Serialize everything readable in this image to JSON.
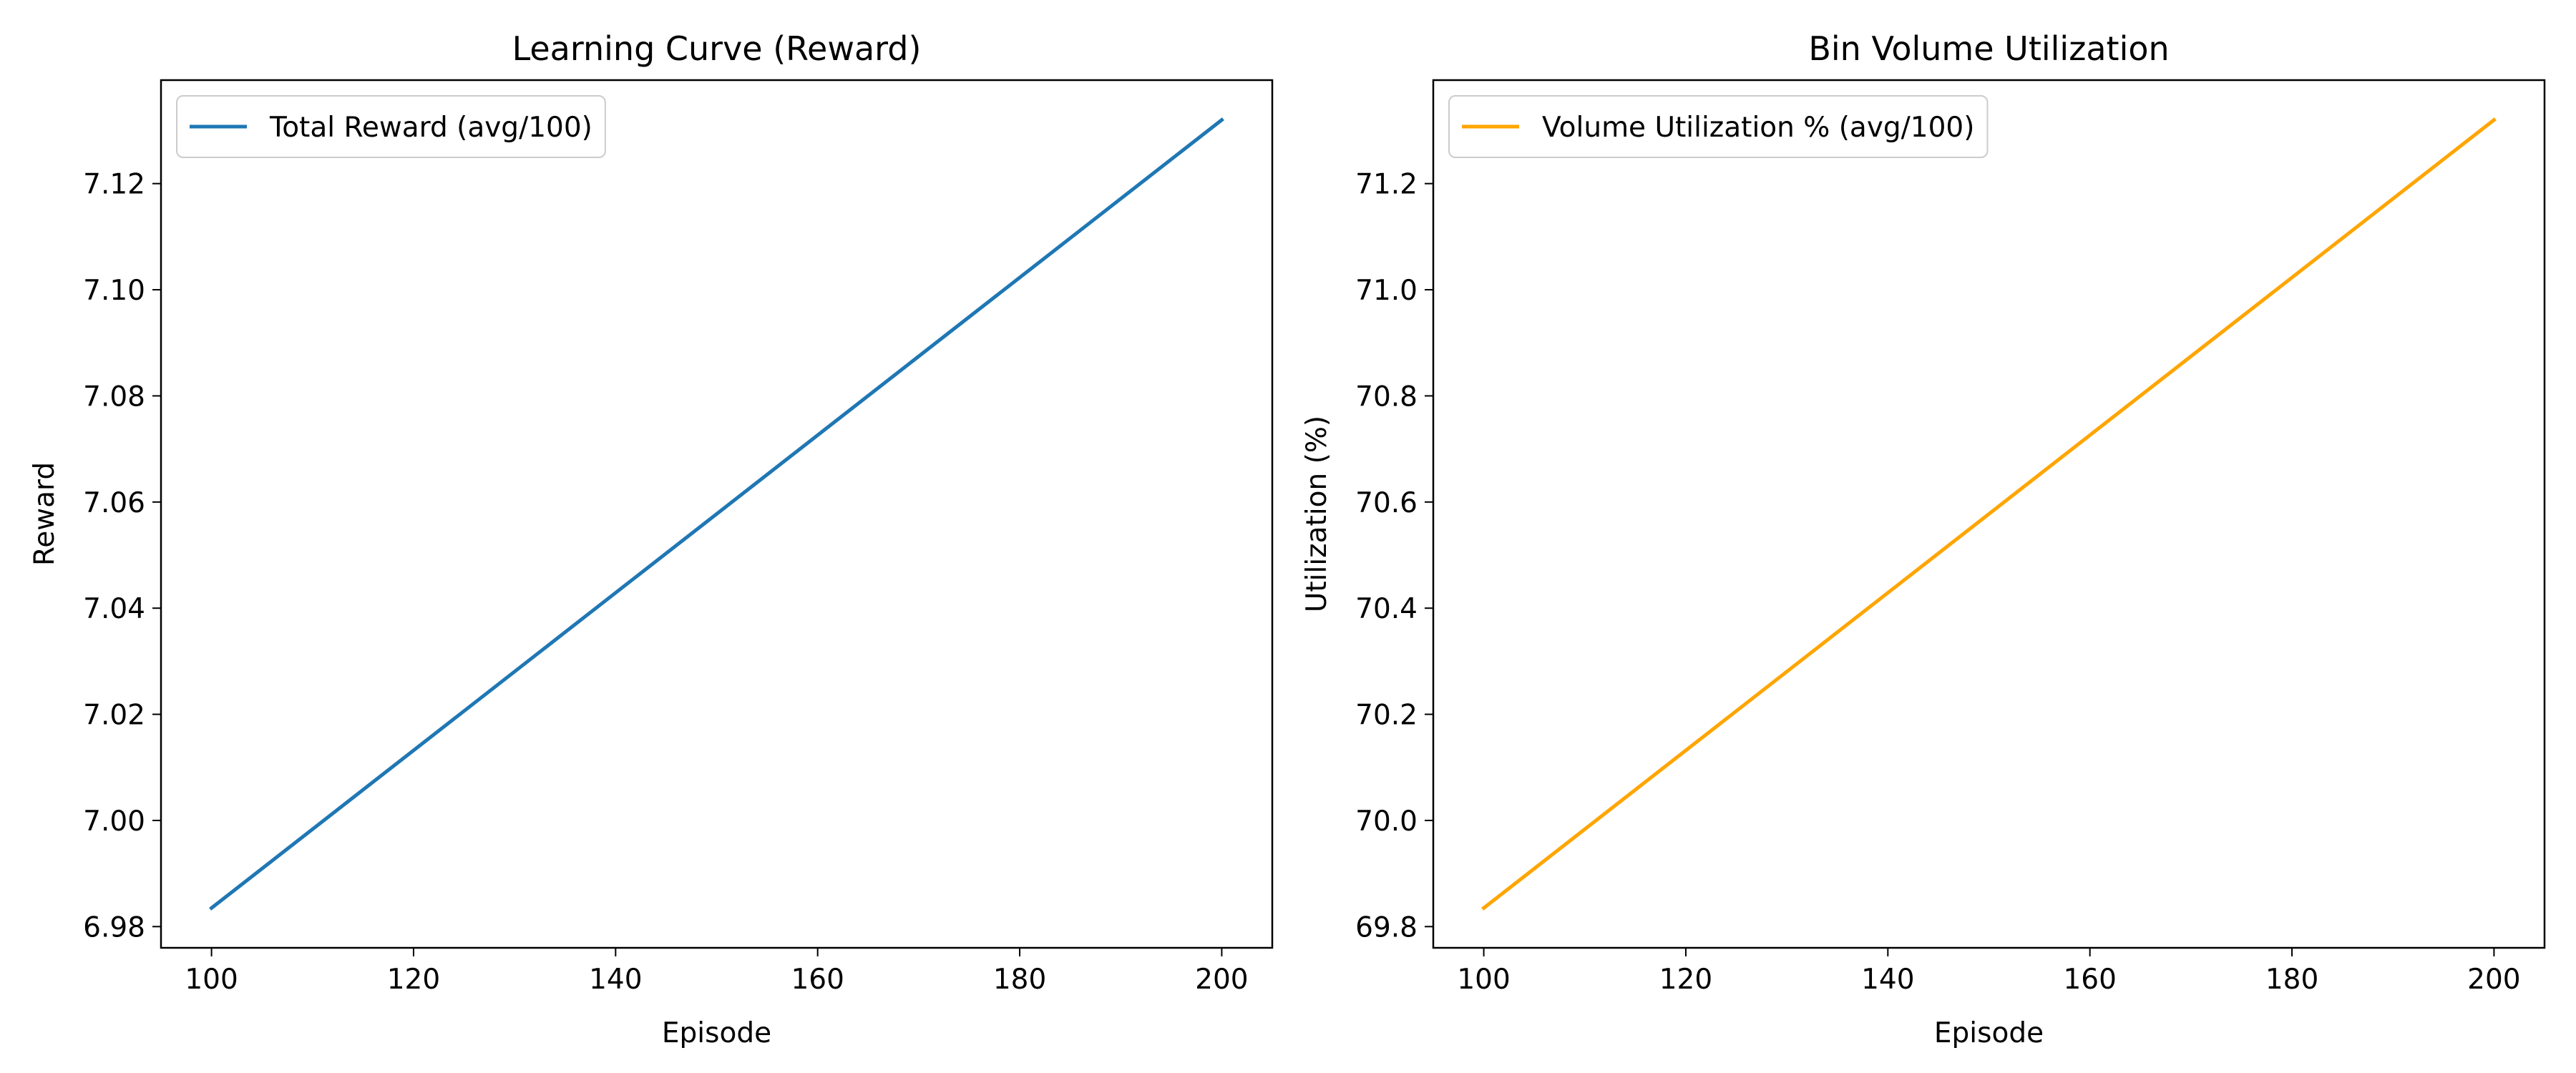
{
  "chart_data": [
    {
      "type": "line",
      "title": "Learning Curve (Reward)",
      "xlabel": "Episode",
      "ylabel": "Reward",
      "xlim": [
        95,
        205
      ],
      "ylim": [
        6.976,
        7.1395
      ],
      "x_ticks": [
        100,
        120,
        140,
        160,
        180,
        200
      ],
      "y_ticks": [
        6.98,
        7.0,
        7.02,
        7.04,
        7.06,
        7.08,
        7.1,
        7.12
      ],
      "y_tick_decimals": 2,
      "grid": false,
      "legend_position": "upper-left",
      "series": [
        {
          "name": "Total Reward (avg/100)",
          "color": "#1f77b4",
          "x": [
            100,
            200
          ],
          "y": [
            6.9835,
            7.132
          ]
        }
      ]
    },
    {
      "type": "line",
      "title": "Bin Volume Utilization",
      "xlabel": "Episode",
      "ylabel": "Utilization (%)",
      "xlim": [
        95,
        205
      ],
      "ylim": [
        69.76,
        71.395
      ],
      "x_ticks": [
        100,
        120,
        140,
        160,
        180,
        200
      ],
      "y_ticks": [
        69.8,
        70.0,
        70.2,
        70.4,
        70.6,
        70.8,
        71.0,
        71.2
      ],
      "y_tick_decimals": 1,
      "grid": false,
      "legend_position": "upper-left",
      "series": [
        {
          "name": "Volume Utilization % (avg/100)",
          "color": "#ffa500",
          "x": [
            100,
            200
          ],
          "y": [
            69.835,
            71.32
          ]
        }
      ]
    }
  ]
}
